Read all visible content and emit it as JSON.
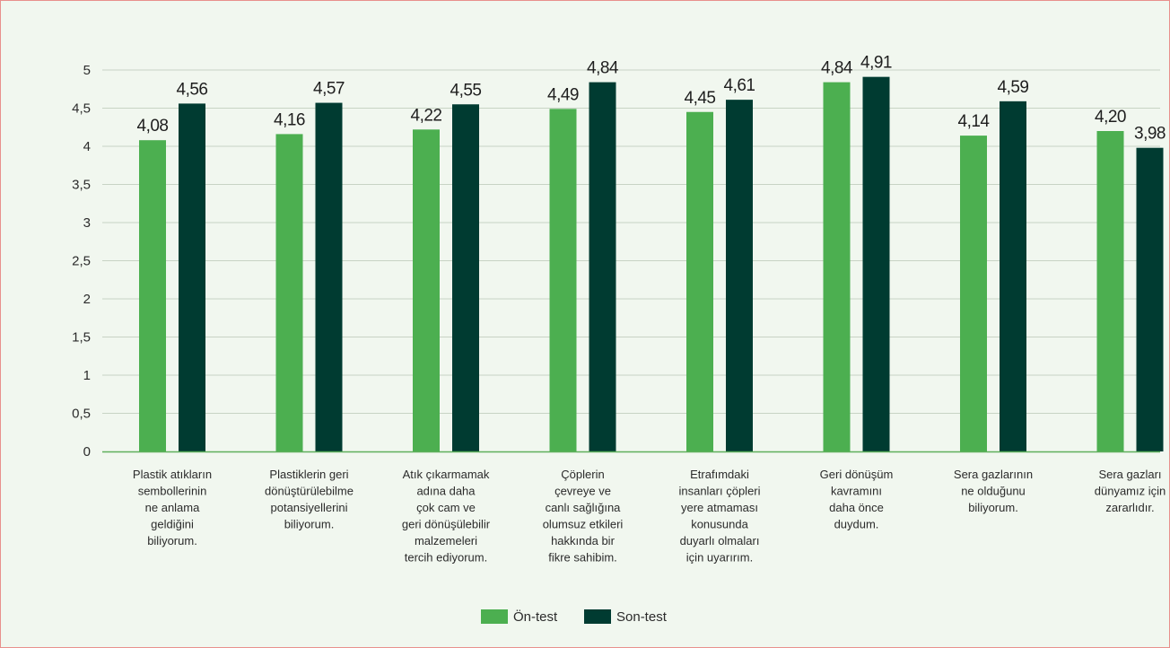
{
  "colors": {
    "on_test": "#4caf50",
    "son_test": "#003b31",
    "grid": "#c8d3c4",
    "axis": "#5fb05c",
    "background": "#f1f7ef",
    "border": "#e8908c"
  },
  "chart_data": {
    "type": "bar",
    "title": "",
    "xlabel": "",
    "ylabel": "",
    "ylim": [
      0,
      5
    ],
    "yticks": [
      0,
      0.5,
      1,
      1.5,
      2,
      2.5,
      3,
      3.5,
      4,
      4.5,
      5
    ],
    "ytick_labels": [
      "0",
      "0,5",
      "1",
      "1,5",
      "2",
      "2,5",
      "3",
      "3,5",
      "4",
      "4,5",
      "5"
    ],
    "grid": true,
    "legend_position": "bottom-center",
    "categories": [
      [
        "Plastik atıkların",
        "sembollerinin",
        "ne anlama",
        "geldiğini",
        "biliyorum."
      ],
      [
        "Plastiklerin geri",
        "dönüştürülebilme",
        "potansiyellerini",
        "biliyorum."
      ],
      [
        "Atık çıkarmamak",
        "adına daha",
        "çok cam ve",
        "geri dönüşülebilir",
        "malzemeleri",
        "tercih ediyorum."
      ],
      [
        "Çöplerin",
        "çevreye ve",
        "canlı sağlığına",
        "olumsuz etkileri",
        "hakkında bir",
        "fikre sahibim."
      ],
      [
        "Etrafımdaki",
        "insanları çöpleri",
        "yere atmaması",
        "konusunda",
        "duyarlı olmaları",
        "için uyarırım."
      ],
      [
        "Geri dönüşüm",
        "kavramını",
        "daha önce",
        "duydum."
      ],
      [
        "Sera gazlarının",
        "ne olduğunu",
        "biliyorum."
      ],
      [
        "Sera gazları",
        "dünyamız için",
        "zararlıdır."
      ]
    ],
    "series": [
      {
        "name": "Ön-test",
        "values": [
          4.08,
          4.16,
          4.22,
          4.49,
          4.45,
          4.84,
          4.14,
          4.2
        ],
        "labels": [
          "4,08",
          "4,16",
          "4,22",
          "4,49",
          "4,45",
          "4,84",
          "4,14",
          "4,20"
        ]
      },
      {
        "name": "Son-test",
        "values": [
          4.56,
          4.57,
          4.55,
          4.84,
          4.61,
          4.91,
          4.59,
          3.98
        ],
        "labels": [
          "4,56",
          "4,57",
          "4,55",
          "4,84",
          "4,61",
          "4,91",
          "4,59",
          "3,98"
        ]
      }
    ]
  }
}
